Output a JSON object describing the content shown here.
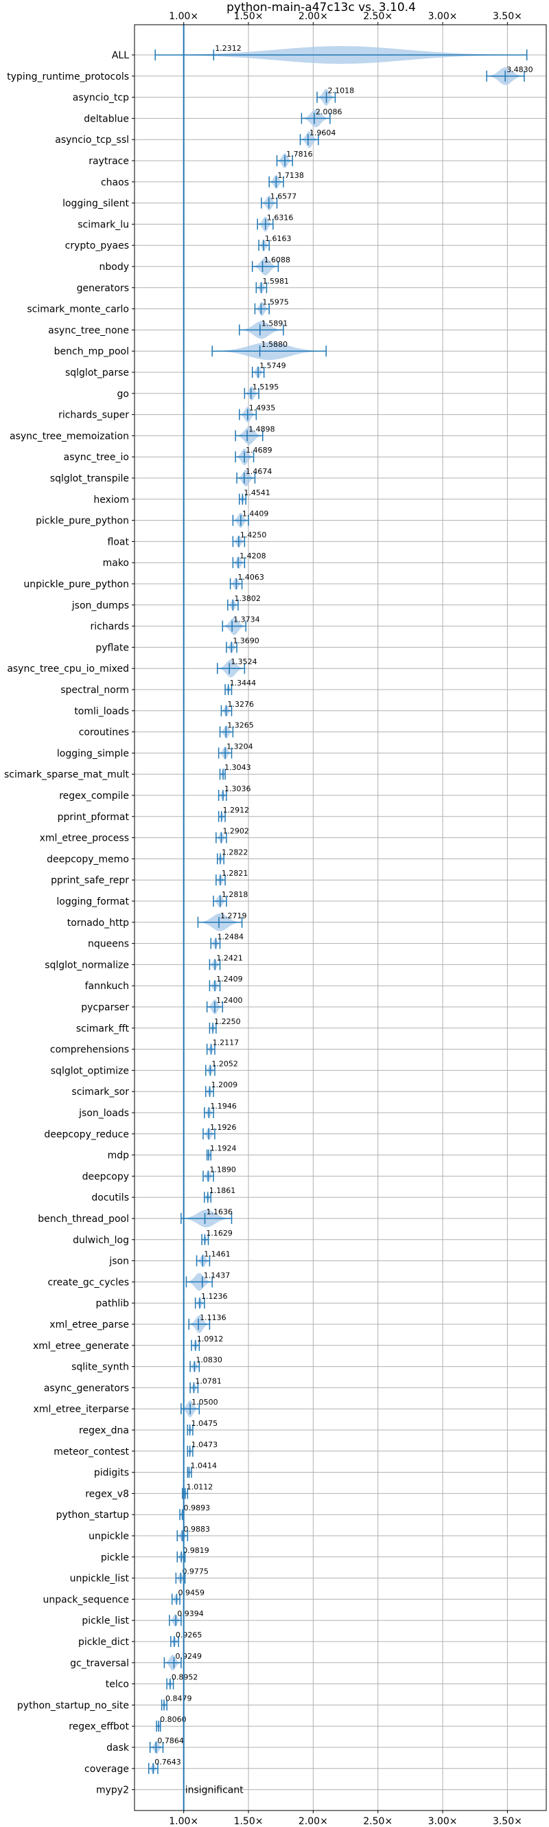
{
  "chart_data": {
    "type": "violin",
    "title": "python-main-a47c13c vs. 3.10.4",
    "xlim": [
      0.62,
      3.8
    ],
    "xticks": [
      1.0,
      1.5,
      2.0,
      2.5,
      3.0,
      3.5
    ],
    "xtick_labels": [
      "1.00×",
      "1.50×",
      "2.00×",
      "2.50×",
      "3.00×",
      "3.50×"
    ],
    "reference_line": 1.0,
    "grid": true,
    "colors": {
      "line": "#1f77b4",
      "violin": "#a8c8e8"
    },
    "insignificant_label": "insignificant",
    "benchmarks": [
      {
        "name": "ALL",
        "value": 1.2312,
        "label": "1.2312",
        "min": 0.78,
        "max": 3.65
      },
      {
        "name": "typing_runtime_protocols",
        "value": 3.483,
        "label": "3.4830",
        "min": 3.34,
        "max": 3.63
      },
      {
        "name": "asyncio_tcp",
        "value": 2.1018,
        "label": "2.1018",
        "min": 2.03,
        "max": 2.17
      },
      {
        "name": "deltablue",
        "value": 2.0086,
        "label": "2.0086",
        "min": 1.91,
        "max": 2.13
      },
      {
        "name": "asyncio_tcp_ssl",
        "value": 1.9604,
        "label": "1.9604",
        "min": 1.9,
        "max": 2.04
      },
      {
        "name": "raytrace",
        "value": 1.7816,
        "label": "1.7816",
        "min": 1.72,
        "max": 1.84
      },
      {
        "name": "chaos",
        "value": 1.7138,
        "label": "1.7138",
        "min": 1.66,
        "max": 1.77
      },
      {
        "name": "logging_silent",
        "value": 1.6577,
        "label": "1.6577",
        "min": 1.6,
        "max": 1.72
      },
      {
        "name": "scimark_lu",
        "value": 1.6316,
        "label": "1.6316",
        "min": 1.57,
        "max": 1.69
      },
      {
        "name": "crypto_pyaes",
        "value": 1.6163,
        "label": "1.6163",
        "min": 1.58,
        "max": 1.66
      },
      {
        "name": "nbody",
        "value": 1.6088,
        "label": "1.6088",
        "min": 1.53,
        "max": 1.73
      },
      {
        "name": "generators",
        "value": 1.5981,
        "label": "1.5981",
        "min": 1.56,
        "max": 1.64
      },
      {
        "name": "scimark_monte_carlo",
        "value": 1.5975,
        "label": "1.5975",
        "min": 1.55,
        "max": 1.66
      },
      {
        "name": "async_tree_none",
        "value": 1.5891,
        "label": "1.5891",
        "min": 1.43,
        "max": 1.77
      },
      {
        "name": "bench_mp_pool",
        "value": 1.588,
        "label": "1.5880",
        "min": 1.22,
        "max": 2.1
      },
      {
        "name": "sqlglot_parse",
        "value": 1.5749,
        "label": "1.5749",
        "min": 1.53,
        "max": 1.62
      },
      {
        "name": "go",
        "value": 1.5195,
        "label": "1.5195",
        "min": 1.47,
        "max": 1.58
      },
      {
        "name": "richards_super",
        "value": 1.4935,
        "label": "1.4935",
        "min": 1.43,
        "max": 1.56
      },
      {
        "name": "async_tree_memoization",
        "value": 1.4898,
        "label": "1.4898",
        "min": 1.4,
        "max": 1.61
      },
      {
        "name": "async_tree_io",
        "value": 1.4689,
        "label": "1.4689",
        "min": 1.4,
        "max": 1.54
      },
      {
        "name": "sqlglot_transpile",
        "value": 1.4674,
        "label": "1.4674",
        "min": 1.41,
        "max": 1.55
      },
      {
        "name": "hexiom",
        "value": 1.4541,
        "label": "1.4541",
        "min": 1.43,
        "max": 1.48
      },
      {
        "name": "pickle_pure_python",
        "value": 1.4409,
        "label": "1.4409",
        "min": 1.38,
        "max": 1.5
      },
      {
        "name": "float",
        "value": 1.425,
        "label": "1.4250",
        "min": 1.38,
        "max": 1.47
      },
      {
        "name": "mako",
        "value": 1.4208,
        "label": "1.4208",
        "min": 1.38,
        "max": 1.47
      },
      {
        "name": "unpickle_pure_python",
        "value": 1.4063,
        "label": "1.4063",
        "min": 1.36,
        "max": 1.45
      },
      {
        "name": "json_dumps",
        "value": 1.3802,
        "label": "1.3802",
        "min": 1.34,
        "max": 1.42
      },
      {
        "name": "richards",
        "value": 1.3734,
        "label": "1.3734",
        "min": 1.3,
        "max": 1.48
      },
      {
        "name": "pyflate",
        "value": 1.369,
        "label": "1.3690",
        "min": 1.33,
        "max": 1.41
      },
      {
        "name": "async_tree_cpu_io_mixed",
        "value": 1.3524,
        "label": "1.3524",
        "min": 1.26,
        "max": 1.47
      },
      {
        "name": "spectral_norm",
        "value": 1.3444,
        "label": "1.3444",
        "min": 1.32,
        "max": 1.37
      },
      {
        "name": "tomli_loads",
        "value": 1.3276,
        "label": "1.3276",
        "min": 1.29,
        "max": 1.37
      },
      {
        "name": "coroutines",
        "value": 1.3265,
        "label": "1.3265",
        "min": 1.28,
        "max": 1.38
      },
      {
        "name": "logging_simple",
        "value": 1.3204,
        "label": "1.3204",
        "min": 1.27,
        "max": 1.37
      },
      {
        "name": "scimark_sparse_mat_mult",
        "value": 1.3043,
        "label": "1.3043",
        "min": 1.28,
        "max": 1.32
      },
      {
        "name": "regex_compile",
        "value": 1.3036,
        "label": "1.3036",
        "min": 1.27,
        "max": 1.33
      },
      {
        "name": "pprint_pformat",
        "value": 1.2912,
        "label": "1.2912",
        "min": 1.27,
        "max": 1.32
      },
      {
        "name": "xml_etree_process",
        "value": 1.2902,
        "label": "1.2902",
        "min": 1.25,
        "max": 1.33
      },
      {
        "name": "deepcopy_memo",
        "value": 1.2822,
        "label": "1.2822",
        "min": 1.26,
        "max": 1.31
      },
      {
        "name": "pprint_safe_repr",
        "value": 1.2821,
        "label": "1.2821",
        "min": 1.25,
        "max": 1.32
      },
      {
        "name": "logging_format",
        "value": 1.2818,
        "label": "1.2818",
        "min": 1.23,
        "max": 1.33
      },
      {
        "name": "tornado_http",
        "value": 1.2719,
        "label": "1.2719",
        "min": 1.11,
        "max": 1.45
      },
      {
        "name": "nqueens",
        "value": 1.2484,
        "label": "1.2484",
        "min": 1.21,
        "max": 1.28
      },
      {
        "name": "sqlglot_normalize",
        "value": 1.2421,
        "label": "1.2421",
        "min": 1.2,
        "max": 1.28
      },
      {
        "name": "fannkuch",
        "value": 1.2409,
        "label": "1.2409",
        "min": 1.2,
        "max": 1.28
      },
      {
        "name": "pycparser",
        "value": 1.24,
        "label": "1.2400",
        "min": 1.18,
        "max": 1.3
      },
      {
        "name": "scimark_fft",
        "value": 1.225,
        "label": "1.2250",
        "min": 1.2,
        "max": 1.25
      },
      {
        "name": "comprehensions",
        "value": 1.2117,
        "label": "1.2117",
        "min": 1.18,
        "max": 1.24
      },
      {
        "name": "sqlglot_optimize",
        "value": 1.2052,
        "label": "1.2052",
        "min": 1.17,
        "max": 1.24
      },
      {
        "name": "scimark_sor",
        "value": 1.2009,
        "label": "1.2009",
        "min": 1.17,
        "max": 1.23
      },
      {
        "name": "json_loads",
        "value": 1.1946,
        "label": "1.1946",
        "min": 1.16,
        "max": 1.23
      },
      {
        "name": "deepcopy_reduce",
        "value": 1.1926,
        "label": "1.1926",
        "min": 1.15,
        "max": 1.24
      },
      {
        "name": "mdp",
        "value": 1.1924,
        "label": "1.1924",
        "min": 1.18,
        "max": 1.21
      },
      {
        "name": "deepcopy",
        "value": 1.189,
        "label": "1.1890",
        "min": 1.15,
        "max": 1.23
      },
      {
        "name": "docutils",
        "value": 1.1861,
        "label": "1.1861",
        "min": 1.16,
        "max": 1.21
      },
      {
        "name": "bench_thread_pool",
        "value": 1.1636,
        "label": "1.1636",
        "min": 0.98,
        "max": 1.37
      },
      {
        "name": "dulwich_log",
        "value": 1.1629,
        "label": "1.1629",
        "min": 1.14,
        "max": 1.19
      },
      {
        "name": "json",
        "value": 1.1461,
        "label": "1.1461",
        "min": 1.1,
        "max": 1.2
      },
      {
        "name": "create_gc_cycles",
        "value": 1.1437,
        "label": "1.1437",
        "min": 1.02,
        "max": 1.22
      },
      {
        "name": "pathlib",
        "value": 1.1236,
        "label": "1.1236",
        "min": 1.09,
        "max": 1.16
      },
      {
        "name": "xml_etree_parse",
        "value": 1.1136,
        "label": "1.1136",
        "min": 1.04,
        "max": 1.2
      },
      {
        "name": "xml_etree_generate",
        "value": 1.0912,
        "label": "1.0912",
        "min": 1.06,
        "max": 1.12
      },
      {
        "name": "sqlite_synth",
        "value": 1.083,
        "label": "1.0830",
        "min": 1.05,
        "max": 1.12
      },
      {
        "name": "async_generators",
        "value": 1.0781,
        "label": "1.0781",
        "min": 1.05,
        "max": 1.11
      },
      {
        "name": "xml_etree_iterparse",
        "value": 1.05,
        "label": "1.0500",
        "min": 0.98,
        "max": 1.12
      },
      {
        "name": "regex_dna",
        "value": 1.0475,
        "label": "1.0475",
        "min": 1.03,
        "max": 1.07
      },
      {
        "name": "meteor_contest",
        "value": 1.0473,
        "label": "1.0473",
        "min": 1.03,
        "max": 1.07
      },
      {
        "name": "pidigits",
        "value": 1.0414,
        "label": "1.0414",
        "min": 1.03,
        "max": 1.06
      },
      {
        "name": "regex_v8",
        "value": 1.0112,
        "label": "1.0112",
        "min": 0.99,
        "max": 1.03
      },
      {
        "name": "python_startup",
        "value": 0.9893,
        "label": "0.9893",
        "min": 0.97,
        "max": 1.0
      },
      {
        "name": "unpickle",
        "value": 0.9883,
        "label": "0.9883",
        "min": 0.95,
        "max": 1.03
      },
      {
        "name": "pickle",
        "value": 0.9819,
        "label": "0.9819",
        "min": 0.95,
        "max": 1.01
      },
      {
        "name": "unpickle_list",
        "value": 0.9775,
        "label": "0.9775",
        "min": 0.94,
        "max": 1.01
      },
      {
        "name": "unpack_sequence",
        "value": 0.9459,
        "label": "0.9459",
        "min": 0.91,
        "max": 0.97
      },
      {
        "name": "pickle_list",
        "value": 0.9394,
        "label": "0.9394",
        "min": 0.89,
        "max": 0.98
      },
      {
        "name": "pickle_dict",
        "value": 0.9265,
        "label": "0.9265",
        "min": 0.9,
        "max": 0.96
      },
      {
        "name": "gc_traversal",
        "value": 0.9249,
        "label": "0.9249",
        "min": 0.85,
        "max": 0.98
      },
      {
        "name": "telco",
        "value": 0.8952,
        "label": "0.8952",
        "min": 0.87,
        "max": 0.92
      },
      {
        "name": "python_startup_no_site",
        "value": 0.8479,
        "label": "0.8479",
        "min": 0.83,
        "max": 0.87
      },
      {
        "name": "regex_effbot",
        "value": 0.806,
        "label": "0.8060",
        "min": 0.79,
        "max": 0.82
      },
      {
        "name": "dask",
        "value": 0.7864,
        "label": "0.7864",
        "min": 0.74,
        "max": 0.84
      },
      {
        "name": "coverage",
        "value": 0.7643,
        "label": "0.7643",
        "min": 0.73,
        "max": 0.8
      },
      {
        "name": "mypy2",
        "value": null,
        "label": "",
        "min": null,
        "max": null,
        "insignificant": true
      }
    ]
  }
}
